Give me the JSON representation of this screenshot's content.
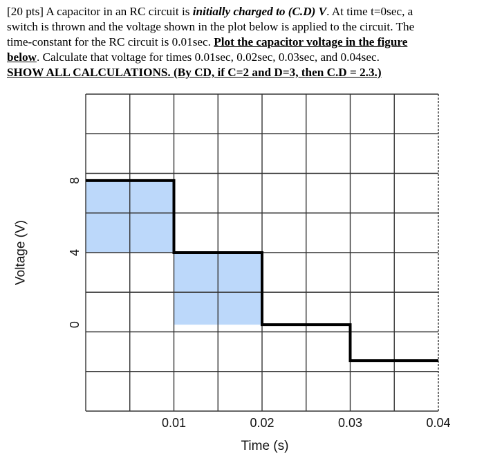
{
  "problem": {
    "line1_a": "[20 pts] A capacitor in an RC circuit is ",
    "line1_b": "initially charged to (C.D) V",
    "line1_c": ". At time t=0sec, a",
    "line2": "switch is thrown and the voltage shown in the plot below is applied to the circuit. The",
    "line3_a": "time-constant for the RC circuit is 0.01sec. ",
    "line3_b": "Plot the capacitor voltage in the figure",
    "line4_a": "below",
    "line4_b": ". Calculate that voltage for times 0.01sec, 0.02sec, 0.03sec, and 0.04sec.",
    "line5": "SHOW ALL CALCULATIONS. (By CD, if C=2 and D=3, then C.D = 2.3.)"
  },
  "chart_data": {
    "type": "line",
    "xlabel": "Time (s)",
    "ylabel": "Voltage (V)",
    "xlim": [
      0,
      0.04
    ],
    "ylim": [
      -4.8,
      12.8
    ],
    "x_ticks": [
      0.01,
      0.02,
      0.03,
      0.04
    ],
    "x_tick_labels": [
      "0.01",
      "0.02",
      "0.03",
      "0.04"
    ],
    "y_ticks": [
      0,
      4,
      8
    ],
    "y_tick_labels": [
      "0",
      "4",
      "8"
    ],
    "grid": true,
    "series": [
      {
        "x": [
          0,
          0.01,
          0.01,
          0.02,
          0.02,
          0.03,
          0.03,
          0.04
        ],
        "y": [
          8,
          8,
          4,
          4,
          0,
          0,
          -2,
          -2
        ]
      }
    ],
    "shaded_regions": [
      {
        "x": [
          0,
          0.01
        ],
        "y": [
          4,
          8
        ]
      },
      {
        "x": [
          0.01,
          0.02
        ],
        "y": [
          0,
          4
        ]
      }
    ],
    "colors": {
      "shade": "#bcd8fa",
      "grid": "#333333",
      "line": "#000000"
    }
  }
}
